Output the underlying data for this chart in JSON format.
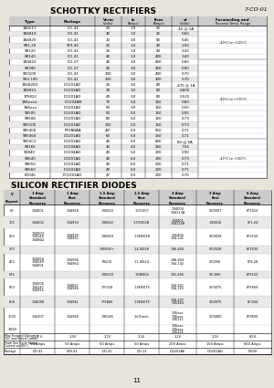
{
  "title_schottky": "SCHOTTKY RECTIFIERS",
  "page_ref": "7-CO-01",
  "page_num": "11",
  "title_silicon": "SILICON RECTIFIER DIODES",
  "bg_color": "#ede9e0",
  "schottky_headers": [
    "Type",
    "Package",
    "Vrrm\n(Volts)",
    "Io\n(Amps)",
    "Ifsm\n(Amps)",
    "vf\n(Volts)",
    "Forwarding and\nReverse Temp. Range"
  ],
  "schottky_rows": [
    [
      "1N5517",
      "DO-41",
      "20",
      "1.0",
      "25",
      ".45 @ 1A"
    ],
    [
      "1N5819",
      "DO-41",
      "40",
      "1.0",
      "25",
      "0.60"
    ],
    [
      "1N5820",
      "DO-41",
      "20",
      "3.0",
      "80",
      "0.45"
    ],
    [
      "SR1-20",
      "SY3-40",
      "20",
      "1.0",
      "40",
      "1.50"
    ],
    [
      "SR120",
      "DO-41",
      "20",
      "1.0",
      "40",
      "2.20"
    ],
    [
      "SR140",
      "DO-41",
      "40",
      "1.0",
      "400",
      "3.40"
    ],
    [
      "1N5822",
      "DO-27",
      "40",
      "3.0",
      "400",
      "0.60"
    ],
    [
      "SR390",
      "DO-27",
      "40",
      "3.0",
      "400",
      "0.90"
    ],
    [
      "SR3100",
      "DO-41",
      "100",
      "3.0",
      "400",
      "0.70"
    ],
    [
      "SR3-100",
      "DO-41",
      "100",
      "3.0",
      "400",
      "0.70"
    ],
    [
      "1N5820D",
      "DO201AD",
      "20",
      "3.0",
      "80",
      ".475 @ 1A"
    ],
    [
      "1N5821",
      "DO201AD",
      "30",
      "3.0",
      "80",
      "0.600"
    ],
    [
      "1P5822",
      "DO201AD",
      "40",
      "3.0",
      "80",
      "0.525"
    ],
    [
      "1N5xxxx",
      "DO204AB",
      "70",
      "0.4",
      "150",
      "0.60"
    ],
    [
      "1N6xxx",
      "DO201AD",
      "50",
      "3.0",
      "150",
      "0.50"
    ],
    [
      "SR505",
      "DO201AD",
      "50",
      "5.0",
      "150",
      "0.55"
    ],
    [
      "SR508",
      "DO201AD",
      "80",
      "5.0",
      "150",
      "0.73"
    ],
    [
      "SR5100",
      "DO201AD",
      "100",
      "5.0",
      "150",
      "0.73"
    ],
    [
      "SR5400",
      "PTVBBAA",
      "40*",
      "5.0",
      "550",
      "0.71"
    ],
    [
      "SR5060",
      "DO201AD",
      "60",
      "5.0",
      "150",
      "0.71"
    ],
    [
      "SR50C2",
      "DO201AD",
      "40",
      "5.0",
      "800",
      "80 @ 5A"
    ],
    [
      "SR165",
      "DO204AD",
      "40",
      "4.0",
      "260",
      "7.54"
    ],
    [
      "SD840",
      "DO204AD",
      "40",
      "5.0",
      "200",
      "0.90"
    ],
    [
      "SR640",
      "DO201AD",
      "40",
      "6.0",
      "200",
      "0.73"
    ],
    [
      "SR650",
      "DO201AD",
      "40",
      "6.0",
      "200",
      "0.71"
    ],
    [
      "SR560",
      "DO201AD",
      "40",
      "6.0",
      "200",
      "0.71"
    ],
    [
      "B1045",
      "FCO201AD",
      "47",
      "5.0",
      "200",
      "0.70"
    ]
  ],
  "schottky_note_ranges": [
    [
      0,
      5
    ],
    [
      6,
      19
    ],
    [
      20,
      26
    ]
  ],
  "schottky_notes": [
    "-40°C to +125°C",
    "-40°C to +175°C",
    "-40°C to +150°C"
  ],
  "silicon_headers": [
    "V\nRepeat",
    "1 Amp\nStandard\nRecovery",
    "1 Amp\nFast\nRecovery",
    "1.5 Amp\nStandard\nRecovery",
    "1.5 Amp\nFast\nRecovery",
    "3 Amp\nStandard\nRecovery",
    "3 Amp\nFast\nRecovery",
    "6 Amp\nStandard\nRecovery"
  ],
  "silicon_rows": [
    [
      "50",
      "1N4001",
      "1N4948",
      "1N5060",
      "1.0/1007",
      "1N4004\n1N4113A",
      "3EI0007",
      "6P1024"
    ],
    [
      "100",
      "1N4002",
      "1N4934",
      "1N5062",
      "1.3/1002B",
      "1N4401\n1N4115B",
      "1N10U6",
      "6P1.24"
    ],
    [
      "200",
      "1N4003\n1N4148\n1N4N42",
      "1N4935\n1N4942",
      "1N5064",
      "1.3EI0028",
      "1N5400\n1N4-141",
      "3EI0028",
      "6P2150"
    ],
    [
      "300",
      "",
      "",
      "1N5066+",
      "1.4-I0028",
      "1N6-404",
      "3EI0028",
      "6P2530"
    ],
    [
      "400",
      "1N4004\n1N4049\n1N4001",
      "1N4936\n1N4964",
      "RS215",
      "1.1-I0024",
      "1N6-404\n1N4-142",
      "3EI004I",
      "6P4.28"
    ],
    [
      "575",
      "",
      "",
      "1N5518",
      "1.EBI004",
      "1N1-405",
      "3EI-005",
      "6P5150"
    ],
    [
      "800",
      "1N4006\n1N4147\n1N4915",
      "1N4821\n1N4946",
      "1P5318",
      "1.3EI0075",
      "1N4-401\n1N4-165",
      "3EI0075",
      "6P5609"
    ],
    [
      "8U0",
      "1N4U08",
      "1N4941",
      "1P5B46",
      "1.3EI0075",
      "1N0-407\n1N5344",
      "3EI0075",
      "6P-504"
    ],
    [
      "1000",
      "1N4307",
      "1N4948",
      "1N5145",
      "1.kI1mee",
      "1N5xxx\n1N5xxx\n1N5111",
      "3EI0080",
      "6P0606"
    ]
  ],
  "silicon_row_1010": [
    "1010",
    "",
    "",
    "",
    "",
    "1N5xxx\n1N5xxx\n1N5111",
    "",
    ""
  ],
  "silicon_footer": [
    [
      "Max Forward Voltage at\n25C and Rated Current",
      "1.1 V",
      "1.3V",
      "1.1V",
      "1.3V",
      "1.2V",
      "1.3V",
      ".85V"
    ],
    [
      "Peak One Cycle Surge\nCurrent at 100 C",
      "50 Amps",
      "50 Amps",
      "50 Amps",
      "50 Amps",
      "200 Amps",
      "150 Amps",
      "650 Amps"
    ],
    [
      "Package",
      "DO-41",
      "DYS-41",
      "DO-41",
      "DO-13",
      "DO201AE",
      "DO201AD",
      "P-600"
    ]
  ]
}
